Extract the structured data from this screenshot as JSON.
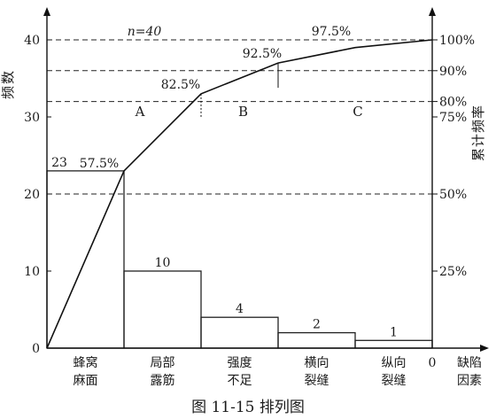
{
  "chart_data": {
    "type": "pareto",
    "caption": "图 11-15   排列图",
    "n_annotation": "n=40",
    "y_left": {
      "label": "频数",
      "ticks": [
        0,
        10,
        20,
        30,
        40
      ],
      "range": [
        0,
        40
      ]
    },
    "y_right": {
      "label": "累计频率",
      "range_percent": [
        0,
        100
      ],
      "ticks": [
        {
          "value": 25,
          "label": "25%"
        },
        {
          "value": 50,
          "label": "50%"
        },
        {
          "value": 75,
          "label": "75%"
        },
        {
          "value": 80,
          "label": "80%"
        },
        {
          "value": 90,
          "label": "90%"
        },
        {
          "value": 100,
          "label": "100%"
        }
      ]
    },
    "x_axis": {
      "label_lines": [
        "缺陷",
        "因素"
      ],
      "origin_label": "0"
    },
    "categories": [
      {
        "lines": [
          "蜂窝",
          "麻面"
        ],
        "frequency": 23,
        "freq_label": "23",
        "cumulative_percent": 57.5,
        "cum_label": "57.5%"
      },
      {
        "lines": [
          "局部",
          "露筋"
        ],
        "frequency": 10,
        "freq_label": "10",
        "cumulative_percent": 82.5,
        "cum_label": "82.5%"
      },
      {
        "lines": [
          "强度",
          "不足"
        ],
        "frequency": 4,
        "freq_label": "4",
        "cumulative_percent": 92.5,
        "cum_label": "92.5%"
      },
      {
        "lines": [
          "横向",
          "裂缝"
        ],
        "frequency": 2,
        "freq_label": "2",
        "cumulative_percent": 97.5,
        "cum_label": ""
      },
      {
        "lines": [
          "纵向",
          "裂缝"
        ],
        "frequency": 1,
        "freq_label": "1",
        "cumulative_percent": 100,
        "cum_label": ""
      }
    ],
    "top_label": "97.5%",
    "reference_lines_percent": [
      50,
      80,
      90,
      100
    ],
    "zones": [
      {
        "label": "A",
        "from_percent": 0,
        "to_percent": 80
      },
      {
        "label": "B",
        "from_percent": 80,
        "to_percent": 90
      },
      {
        "label": "C",
        "from_percent": 90,
        "to_percent": 100
      }
    ]
  }
}
